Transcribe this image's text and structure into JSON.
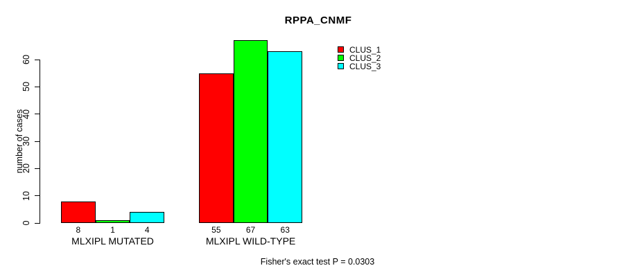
{
  "chart_data": {
    "type": "bar",
    "title": "RPPA_CNMF",
    "ylabel": "number of cases",
    "xlabel": "",
    "categories": [
      "MLXIPL MUTATED",
      "MLXIPL WILD-TYPE"
    ],
    "series": [
      {
        "name": "CLUS_1",
        "color": "#FF0000",
        "values": [
          8,
          55
        ]
      },
      {
        "name": "CLUS_2",
        "color": "#00FF00",
        "values": [
          1,
          67
        ]
      },
      {
        "name": "CLUS_3",
        "color": "#00FFFF",
        "values": [
          4,
          63
        ]
      }
    ],
    "bar_value_labels": [
      [
        8,
        1,
        4
      ],
      [
        55,
        67,
        63
      ]
    ],
    "y_ticks": [
      0,
      10,
      20,
      30,
      40,
      50,
      60
    ],
    "ylim": [
      0,
      67
    ],
    "grid": false,
    "legend_position": "top-right",
    "footer": "Fisher's exact test P = 0.0303",
    "colors": {
      "background": "#FFFFFF",
      "axis": "#000000",
      "clus_1": "#FF0000",
      "clus_2": "#00FF00",
      "clus_3": "#00FFFF"
    }
  }
}
